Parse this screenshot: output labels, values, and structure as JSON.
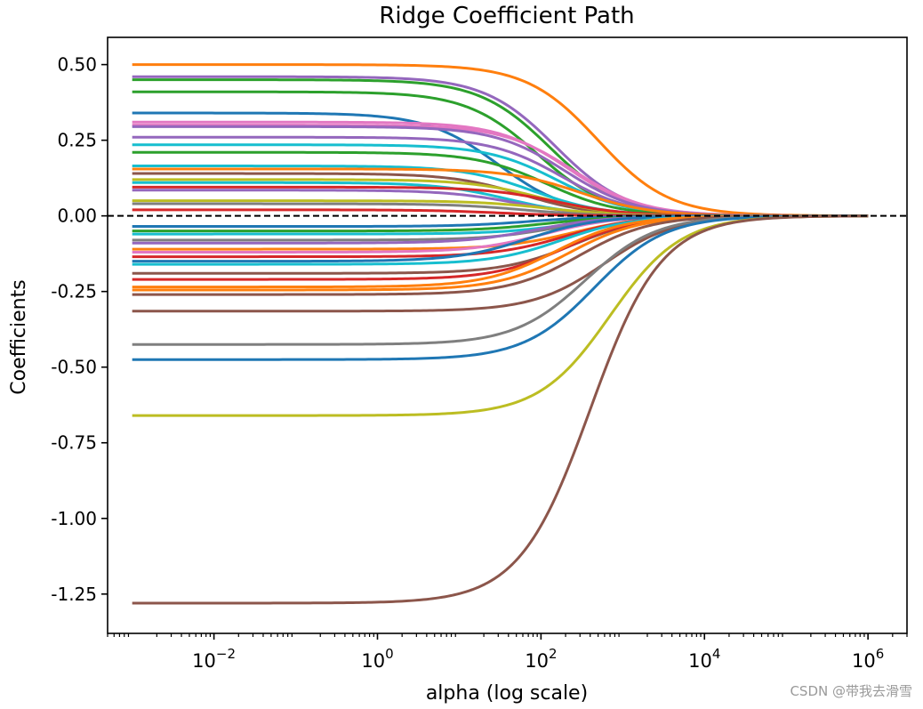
{
  "chart_data": {
    "type": "line",
    "title": "Ridge Coefficient Path",
    "xlabel": "alpha (log scale)",
    "ylabel": "Coefficients",
    "x_scale": "log",
    "xlim": [
      0.0005,
      3000000
    ],
    "ylim": [
      -1.38,
      0.59
    ],
    "x_ticks": [
      {
        "value": 0.01,
        "base": "10",
        "exp": "−2"
      },
      {
        "value": 1,
        "base": "10",
        "exp": "0"
      },
      {
        "value": 100,
        "base": "10",
        "exp": "2"
      },
      {
        "value": 10000,
        "base": "10",
        "exp": "4"
      },
      {
        "value": 1000000,
        "base": "10",
        "exp": "6"
      }
    ],
    "y_ticks": [
      {
        "value": 0.5,
        "label": "0.50"
      },
      {
        "value": 0.25,
        "label": "0.25"
      },
      {
        "value": 0.0,
        "label": "0.00"
      },
      {
        "value": -0.25,
        "label": "-0.25"
      },
      {
        "value": -0.5,
        "label": "-0.50"
      },
      {
        "value": -0.75,
        "label": "-0.75"
      },
      {
        "value": -1.0,
        "label": "-1.00"
      },
      {
        "value": -1.25,
        "label": "-1.25"
      }
    ],
    "grid": false,
    "alpha_range": [
      0.001,
      1000000
    ],
    "series_model": "y = start / (1 + alpha / midpoint)",
    "zero_line": {
      "y": 0,
      "style": "dashed",
      "color": "#000000"
    },
    "series": [
      {
        "start": 0.5,
        "midpoint": 500,
        "color": "#ff7f0e"
      },
      {
        "start": 0.46,
        "midpoint": 150,
        "color": "#9467bd"
      },
      {
        "start": 0.45,
        "midpoint": 130,
        "color": "#2ca02c"
      },
      {
        "start": 0.41,
        "midpoint": 90,
        "color": "#2ca02c"
      },
      {
        "start": 0.34,
        "midpoint": 30,
        "color": "#1f77b4"
      },
      {
        "start": 0.31,
        "midpoint": 220,
        "color": "#e377c2"
      },
      {
        "start": 0.3,
        "midpoint": 250,
        "color": "#e377c2"
      },
      {
        "start": 0.295,
        "midpoint": 200,
        "color": "#9467bd"
      },
      {
        "start": 0.26,
        "midpoint": 180,
        "color": "#9467bd"
      },
      {
        "start": 0.235,
        "midpoint": 160,
        "color": "#17becf"
      },
      {
        "start": 0.21,
        "midpoint": 120,
        "color": "#2ca02c"
      },
      {
        "start": 0.165,
        "midpoint": 80,
        "color": "#17becf"
      },
      {
        "start": 0.155,
        "midpoint": 300,
        "color": "#ff7f0e"
      },
      {
        "start": 0.14,
        "midpoint": 60,
        "color": "#8c564b"
      },
      {
        "start": 0.12,
        "midpoint": 100,
        "color": "#bcbd22"
      },
      {
        "start": 0.11,
        "midpoint": 40,
        "color": "#17becf"
      },
      {
        "start": 0.095,
        "midpoint": 150,
        "color": "#d62728"
      },
      {
        "start": 0.085,
        "midpoint": 50,
        "color": "#9467bd"
      },
      {
        "start": 0.05,
        "midpoint": 120,
        "color": "#bcbd22"
      },
      {
        "start": 0.04,
        "midpoint": 60,
        "color": "#7f7f7f"
      },
      {
        "start": 0.02,
        "midpoint": 30,
        "color": "#d62728"
      },
      {
        "start": -0.035,
        "midpoint": 80,
        "color": "#1f77b4"
      },
      {
        "start": -0.05,
        "midpoint": 120,
        "color": "#2ca02c"
      },
      {
        "start": -0.06,
        "midpoint": 200,
        "color": "#17becf"
      },
      {
        "start": -0.08,
        "midpoint": 150,
        "color": "#7f7f7f"
      },
      {
        "start": -0.09,
        "midpoint": 90,
        "color": "#9467bd"
      },
      {
        "start": -0.11,
        "midpoint": 250,
        "color": "#ff7f0e"
      },
      {
        "start": -0.12,
        "midpoint": 110,
        "color": "#e377c2"
      },
      {
        "start": -0.135,
        "midpoint": 200,
        "color": "#d62728"
      },
      {
        "start": -0.15,
        "midpoint": 70,
        "color": "#1f77b4"
      },
      {
        "start": -0.16,
        "midpoint": 180,
        "color": "#17becf"
      },
      {
        "start": -0.19,
        "midpoint": 250,
        "color": "#8c564b"
      },
      {
        "start": -0.21,
        "midpoint": 200,
        "color": "#d62728"
      },
      {
        "start": -0.235,
        "midpoint": 150,
        "color": "#ff7f0e"
      },
      {
        "start": -0.245,
        "midpoint": 220,
        "color": "#ff7f0e"
      },
      {
        "start": -0.26,
        "midpoint": 300,
        "color": "#8c564b"
      },
      {
        "start": -0.315,
        "midpoint": 600,
        "color": "#8c564b"
      },
      {
        "start": -0.425,
        "midpoint": 350,
        "color": "#7f7f7f"
      },
      {
        "start": -0.475,
        "midpoint": 450,
        "color": "#1f77b4"
      },
      {
        "start": -0.66,
        "midpoint": 700,
        "color": "#bcbd22"
      },
      {
        "start": -1.28,
        "midpoint": 400,
        "color": "#8c564b"
      }
    ]
  },
  "watermark": "CSDN @带我去滑雪"
}
